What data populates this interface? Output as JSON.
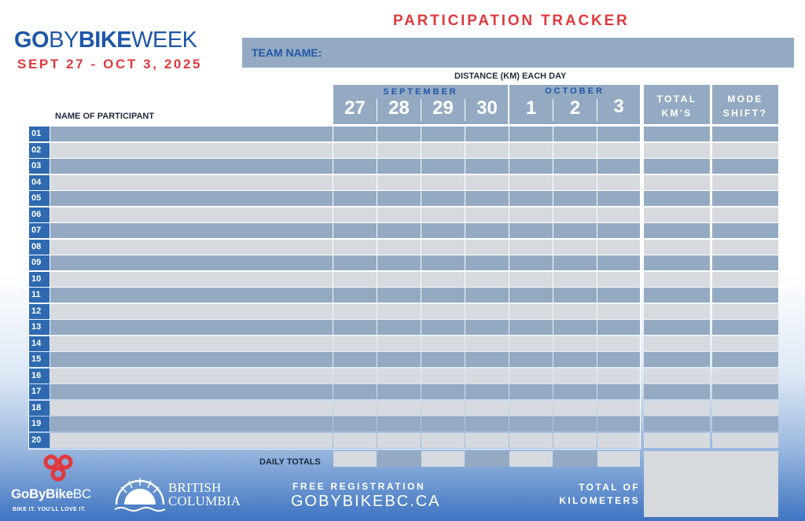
{
  "logo": {
    "go": "GO",
    "by": "BY",
    "bike": "BIKE",
    "week": "WEEK"
  },
  "event_dates": "SEPT 27 - OCT 3, 2025",
  "tracker_title": "PARTICIPATION TRACKER",
  "team_label": "TEAM NAME:",
  "distance_label": "DISTANCE (KM) EACH DAY",
  "name_column_label": "NAME OF PARTICIPANT",
  "months": {
    "september": "SEPTEMBER",
    "october": "OCTOBER"
  },
  "days": [
    "27",
    "28",
    "29",
    "30",
    "1",
    "2",
    "3"
  ],
  "total_header": {
    "line1": "TOTAL",
    "line2": "KM'S"
  },
  "mode_header": {
    "line1": "MODE",
    "line2": "SHIFT?"
  },
  "row_numbers": [
    "01",
    "02",
    "03",
    "04",
    "05",
    "06",
    "07",
    "08",
    "09",
    "10",
    "11",
    "12",
    "13",
    "14",
    "15",
    "16",
    "17",
    "18",
    "19",
    "20"
  ],
  "daily_totals_label": "DAILY TOTALS",
  "footer": {
    "free_registration": "FREE REGISTRATION",
    "website": "GOBYBIKEBC.CA",
    "total_of": "TOTAL OF",
    "kilometers": "KILOMETERS",
    "gobybike_bold": "GoByBike",
    "gobybike_thin": "BC",
    "tagline": "BIKE IT. YOU'LL LOVE IT.",
    "bc_line1": "BRITISH",
    "bc_line2": "COLUMBIA"
  },
  "colors": {
    "dark_row": "#94aac2",
    "light_row": "#d6dadf",
    "brand_blue": "#1e57a8",
    "accent_red": "#e03a3e"
  }
}
